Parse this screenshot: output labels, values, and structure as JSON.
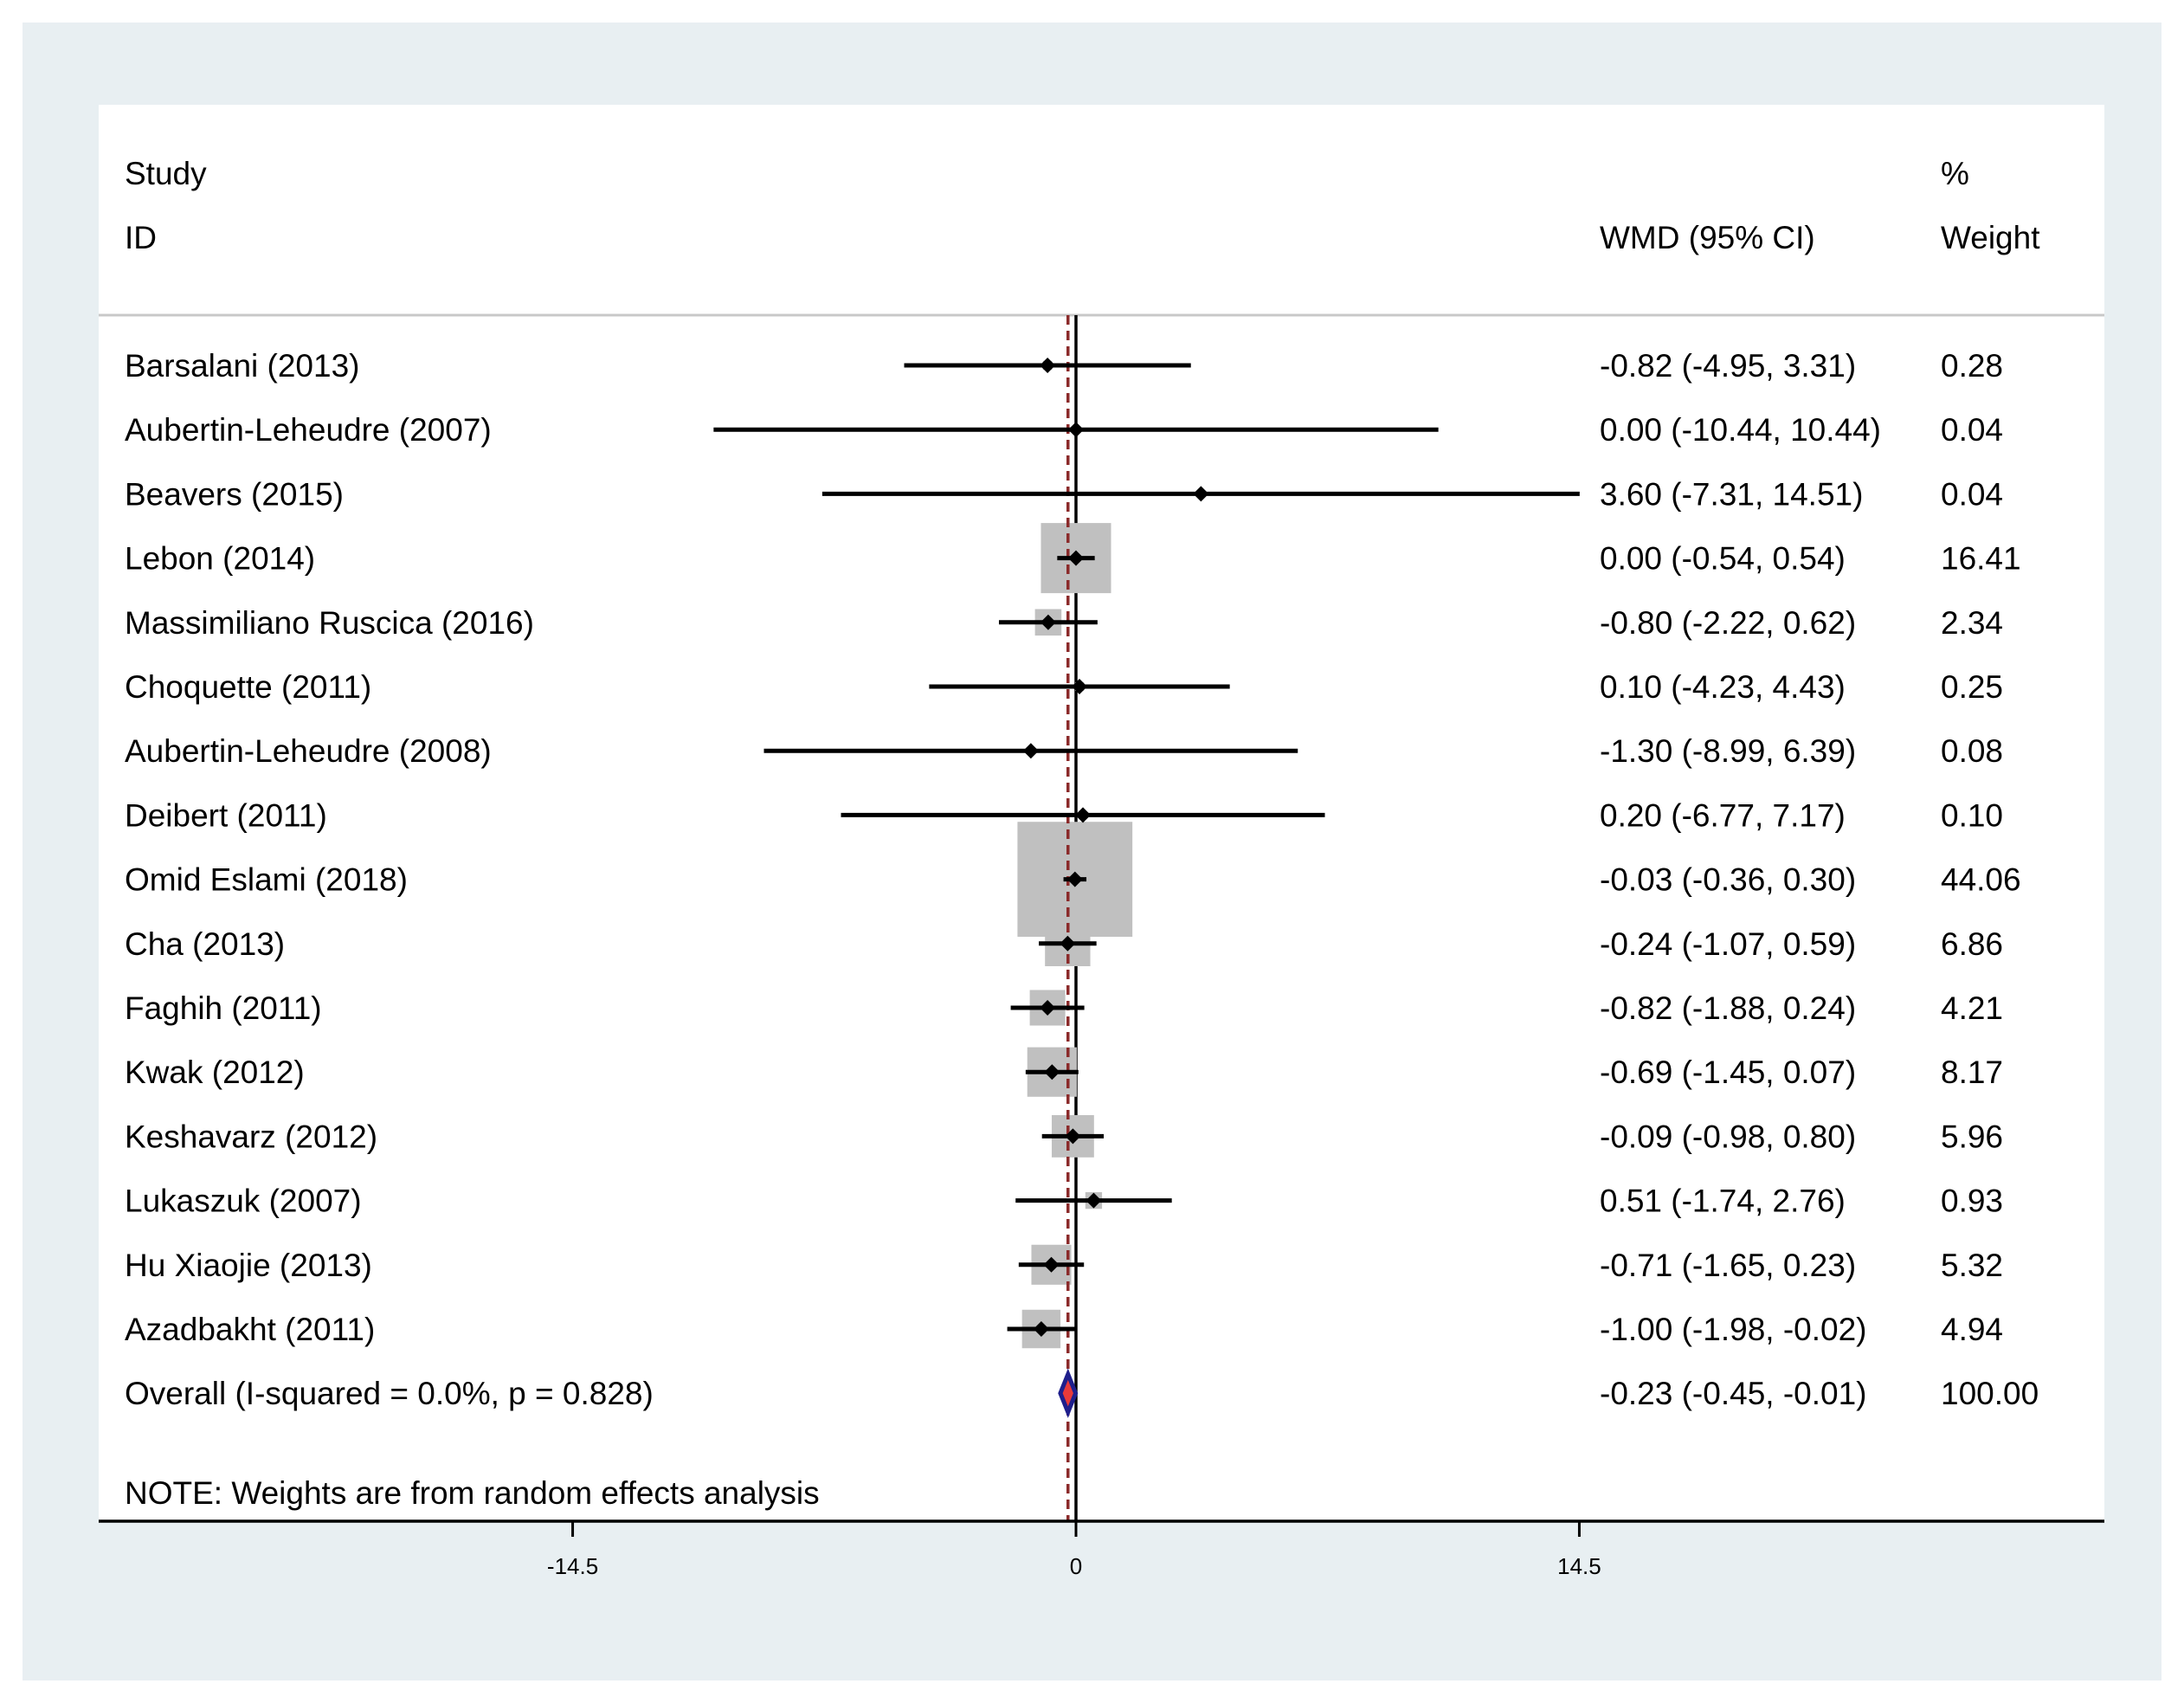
{
  "chart_data": {
    "type": "forest",
    "headers": {
      "study_line1": "Study",
      "study_line2": "ID",
      "effect": "WMD (95% CI)",
      "weight_line1": "%",
      "weight_line2": "Weight"
    },
    "studies": [
      {
        "label": "Barsalani (2013)",
        "est": -0.82,
        "lo": -4.95,
        "hi": 3.31,
        "effect_text": "-0.82 (-4.95, 3.31)",
        "weight": 0.28,
        "weight_text": "0.28"
      },
      {
        "label": "Aubertin-Leheudre (2007)",
        "est": 0.0,
        "lo": -10.44,
        "hi": 10.44,
        "effect_text": "0.00 (-10.44, 10.44)",
        "weight": 0.04,
        "weight_text": "0.04"
      },
      {
        "label": "Beavers (2015)",
        "est": 3.6,
        "lo": -7.31,
        "hi": 14.51,
        "effect_text": "3.60 (-7.31, 14.51)",
        "weight": 0.04,
        "weight_text": "0.04"
      },
      {
        "label": "Lebon (2014)",
        "est": 0.0,
        "lo": -0.54,
        "hi": 0.54,
        "effect_text": "0.00 (-0.54, 0.54)",
        "weight": 16.41,
        "weight_text": "16.41"
      },
      {
        "label": "Massimiliano Ruscica (2016)",
        "est": -0.8,
        "lo": -2.22,
        "hi": 0.62,
        "effect_text": "-0.80 (-2.22, 0.62)",
        "weight": 2.34,
        "weight_text": "2.34"
      },
      {
        "label": "Choquette (2011)",
        "est": 0.1,
        "lo": -4.23,
        "hi": 4.43,
        "effect_text": "0.10 (-4.23, 4.43)",
        "weight": 0.25,
        "weight_text": "0.25"
      },
      {
        "label": "Aubertin-Leheudre (2008)",
        "est": -1.3,
        "lo": -8.99,
        "hi": 6.39,
        "effect_text": "-1.30 (-8.99, 6.39)",
        "weight": 0.08,
        "weight_text": "0.08"
      },
      {
        "label": "Deibert (2011)",
        "est": 0.2,
        "lo": -6.77,
        "hi": 7.17,
        "effect_text": "0.20 (-6.77, 7.17)",
        "weight": 0.1,
        "weight_text": "0.10"
      },
      {
        "label": "Omid Eslami (2018)",
        "est": -0.03,
        "lo": -0.36,
        "hi": 0.3,
        "effect_text": "-0.03 (-0.36, 0.30)",
        "weight": 44.06,
        "weight_text": "44.06"
      },
      {
        "label": "Cha (2013)",
        "est": -0.24,
        "lo": -1.07,
        "hi": 0.59,
        "effect_text": "-0.24 (-1.07, 0.59)",
        "weight": 6.86,
        "weight_text": "6.86"
      },
      {
        "label": "Faghih (2011)",
        "est": -0.82,
        "lo": -1.88,
        "hi": 0.24,
        "effect_text": "-0.82 (-1.88, 0.24)",
        "weight": 4.21,
        "weight_text": "4.21"
      },
      {
        "label": "Kwak (2012)",
        "est": -0.69,
        "lo": -1.45,
        "hi": 0.07,
        "effect_text": "-0.69 (-1.45, 0.07)",
        "weight": 8.17,
        "weight_text": "8.17"
      },
      {
        "label": "Keshavarz (2012)",
        "est": -0.09,
        "lo": -0.98,
        "hi": 0.8,
        "effect_text": "-0.09 (-0.98, 0.80)",
        "weight": 5.96,
        "weight_text": "5.96"
      },
      {
        "label": "Lukaszuk (2007)",
        "est": 0.51,
        "lo": -1.74,
        "hi": 2.76,
        "effect_text": "0.51 (-1.74, 2.76)",
        "weight": 0.93,
        "weight_text": "0.93"
      },
      {
        "label": "Hu Xiaojie (2013)",
        "est": -0.71,
        "lo": -1.65,
        "hi": 0.23,
        "effect_text": "-0.71 (-1.65, 0.23)",
        "weight": 5.32,
        "weight_text": "5.32"
      },
      {
        "label": "Azadbakht (2011)",
        "est": -1.0,
        "lo": -1.98,
        "hi": -0.02,
        "effect_text": "-1.00 (-1.98, -0.02)",
        "weight": 4.94,
        "weight_text": "4.94"
      }
    ],
    "overall": {
      "label": "Overall  (I-squared = 0.0%, p = 0.828)",
      "est": -0.23,
      "lo": -0.45,
      "hi": -0.01,
      "effect_text": "-0.23 (-0.45, -0.01)",
      "weight_text": "100.00"
    },
    "note": "NOTE: Weights are from random effects analysis",
    "x_ticks": [
      {
        "value": -14.5,
        "label": "-14.5"
      },
      {
        "value": 0,
        "label": "0"
      },
      {
        "value": 14.5,
        "label": "14.5"
      }
    ],
    "xlim": [
      -28.3,
      29.9
    ],
    "colors": {
      "outer_background": "#e8eff2",
      "plot_background": "#ffffff",
      "box_fill": "#c0c0c0",
      "ci_line": "#000000",
      "null_line": "#000000",
      "overall_line": "#8b2a2a",
      "overall_diamond_edge": "#1f1f8c",
      "overall_diamond_fill": "#e83a3a"
    }
  }
}
